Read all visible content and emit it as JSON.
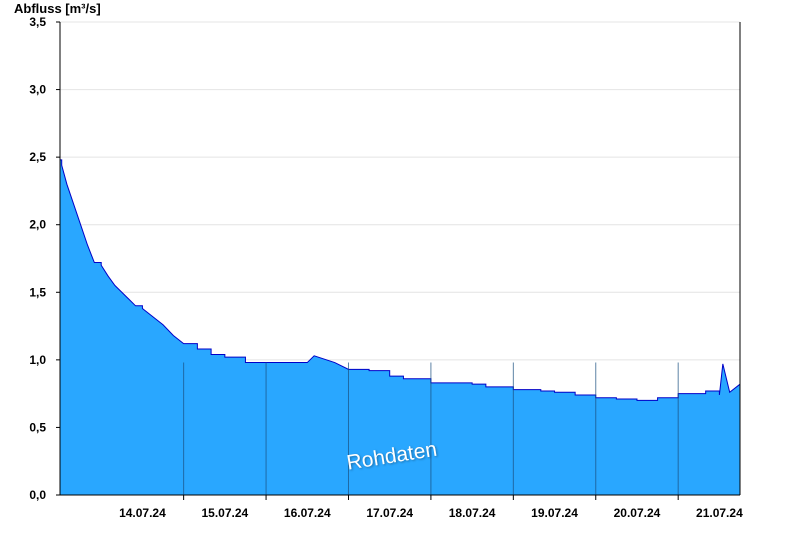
{
  "chart_data": {
    "type": "area",
    "ylabel": "Abfluss [m³/s]",
    "watermark": "Rohdaten",
    "ylim": [
      0,
      3.5
    ],
    "xlim": [
      "13.07.24 12:00",
      "21.07.24 18:00"
    ],
    "yticks": [
      {
        "value": 0.0,
        "label": "0,0"
      },
      {
        "value": 0.5,
        "label": "0,5"
      },
      {
        "value": 1.0,
        "label": "1,0"
      },
      {
        "value": 1.5,
        "label": "1,5"
      },
      {
        "value": 2.0,
        "label": "2,0"
      },
      {
        "value": 2.5,
        "label": "2,5"
      },
      {
        "value": 3.0,
        "label": "3,0"
      },
      {
        "value": 3.5,
        "label": "3,5"
      }
    ],
    "xticks": [
      "14.07.24",
      "15.07.24",
      "16.07.24",
      "17.07.24",
      "18.07.24",
      "19.07.24",
      "20.07.24",
      "21.07.24"
    ],
    "grid": true,
    "colors": {
      "fill": "#29A7FF",
      "line": "#0000C8",
      "day_separator": "#1a4f80",
      "grid": "#e4e4e4"
    },
    "series": [
      {
        "x": [
          "13.07.24 12:00",
          "13.07.24 12:30",
          "13.07.24 14:00",
          "13.07.24 16:00",
          "13.07.24 18:00",
          "13.07.24 20:00",
          "13.07.24 22:00",
          "14.07.24 00:00",
          "14.07.24 02:00",
          "14.07.24 04:00",
          "14.07.24 06:00",
          "14.07.24 08:00",
          "14.07.24 10:00",
          "14.07.24 12:00",
          "14.07.24 15:00",
          "14.07.24 18:00",
          "14.07.24 21:00",
          "15.07.24 00:00",
          "15.07.24 04:00",
          "15.07.24 08:00",
          "15.07.24 12:00",
          "15.07.24 18:00",
          "16.07.24 00:00",
          "16.07.24 01:00",
          "16.07.24 12:00",
          "16.07.24 14:00",
          "16.07.24 20:00",
          "17.07.24 00:00",
          "17.07.24 06:00",
          "17.07.24 12:00",
          "17.07.24 16:00",
          "18.07.24 00:00",
          "18.07.24 12:00",
          "18.07.24 16:00",
          "19.07.24 00:00",
          "19.07.24 08:00",
          "19.07.24 12:00",
          "19.07.24 18:00",
          "20.07.24 00:00",
          "20.07.24 06:00",
          "20.07.24 12:00",
          "20.07.24 18:00",
          "21.07.24 00:00",
          "21.07.24 08:00",
          "21.07.24 12:00",
          "21.07.24 13:00",
          "21.07.24 15:00",
          "21.07.24 18:00"
        ],
        "y": [
          2.48,
          2.44,
          2.3,
          2.15,
          2.0,
          1.85,
          1.72,
          1.7,
          1.62,
          1.55,
          1.5,
          1.45,
          1.4,
          1.38,
          1.32,
          1.26,
          1.18,
          1.12,
          1.08,
          1.04,
          1.02,
          0.98,
          0.98,
          0.98,
          0.98,
          1.03,
          0.98,
          0.93,
          0.92,
          0.88,
          0.86,
          0.83,
          0.82,
          0.8,
          0.78,
          0.77,
          0.76,
          0.74,
          0.72,
          0.71,
          0.7,
          0.72,
          0.75,
          0.77,
          0.74,
          0.97,
          0.76,
          0.82
        ]
      }
    ]
  }
}
